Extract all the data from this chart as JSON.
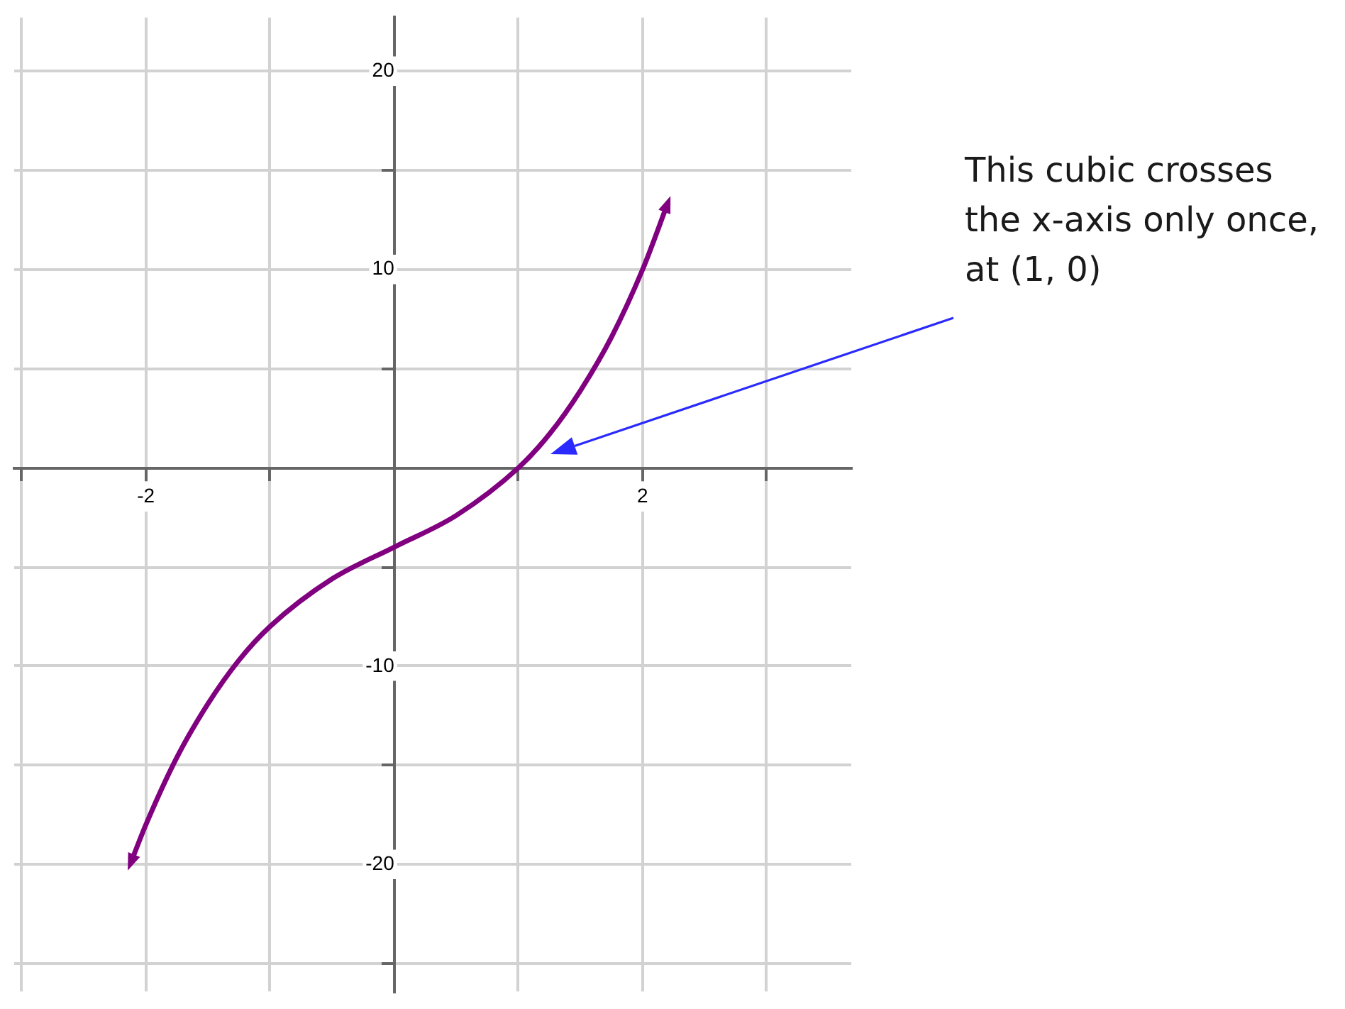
{
  "chart_data": {
    "type": "line",
    "x": [
      -2.12,
      -2,
      -1.75,
      -1.5,
      -1.25,
      -1,
      -0.5,
      0,
      0.5,
      1,
      1.25,
      1.5,
      1.75,
      2,
      2.2
    ],
    "values": [
      -19.9,
      -18,
      -14.6,
      -11.9,
      -9.7,
      -8,
      -5.6,
      -4,
      -2.4,
      0,
      1.7,
      3.9,
      6.6,
      10,
      13.3
    ],
    "color": "#800080",
    "xlim": [
      -3.06,
      3.68
    ],
    "ylim": [
      -26.4,
      22.7
    ],
    "xticks": [
      {
        "value": -3,
        "label": null
      },
      -2,
      {
        "value": -1,
        "label": null
      },
      {
        "value": 0,
        "label": null
      },
      {
        "value": 1,
        "label": null
      },
      2,
      {
        "value": 3,
        "label": null
      }
    ],
    "yticks": [
      {
        "value": -25,
        "label": null
      },
      -20,
      {
        "value": -15,
        "label": null
      },
      -10,
      {
        "value": -5,
        "label": null
      },
      {
        "value": 0,
        "label": null
      },
      {
        "value": 5,
        "label": null
      },
      10,
      {
        "value": 15,
        "label": null
      },
      20
    ],
    "grid": true,
    "marker": "none",
    "line_style": "solid",
    "annotations": [
      "This cubic crosses\nthe x-axis only once,\nat (1, 0)"
    ]
  }
}
